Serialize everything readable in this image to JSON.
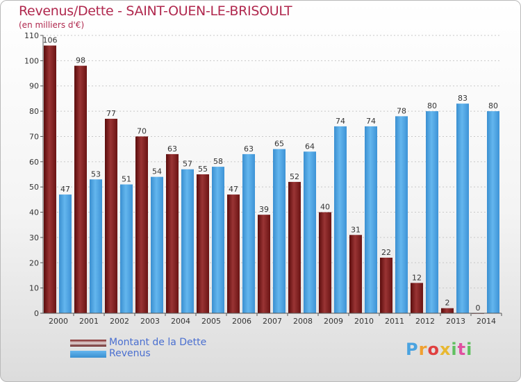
{
  "header": {
    "title": "Revenus/Dette - SAINT-OUEN-LE-BRISOULT",
    "subtitle": "(en milliers d'€)"
  },
  "legend": {
    "items": [
      {
        "label": "Montant de la Dette",
        "color": "#7a1a1a"
      },
      {
        "label": "Revenus",
        "color": "#4aa3e0"
      }
    ]
  },
  "logo": {
    "text": "Proxiti"
  },
  "chart_data": {
    "type": "bar",
    "title": "Revenus/Dette - SAINT-OUEN-LE-BRISOULT",
    "subtitle": "(en milliers d'€)",
    "categories": [
      "2000",
      "2001",
      "2002",
      "2003",
      "2004",
      "2005",
      "2006",
      "2007",
      "2008",
      "2009",
      "2010",
      "2011",
      "2012",
      "2013",
      "2014"
    ],
    "series": [
      {
        "name": "Montant de la Dette",
        "color": "#7a1a1a",
        "values": [
          106,
          98,
          77,
          70,
          63,
          55,
          47,
          39,
          52,
          40,
          31,
          22,
          12,
          2,
          0
        ]
      },
      {
        "name": "Revenus",
        "color": "#4aa3e0",
        "values": [
          47,
          53,
          51,
          54,
          57,
          58,
          63,
          65,
          64,
          74,
          74,
          78,
          80,
          83,
          80
        ]
      }
    ],
    "ylim": [
      0,
      110
    ],
    "yticks": [
      0,
      10,
      20,
      30,
      40,
      50,
      60,
      70,
      80,
      90,
      100,
      110
    ],
    "grid": true,
    "legend_position": "bottom-left"
  }
}
